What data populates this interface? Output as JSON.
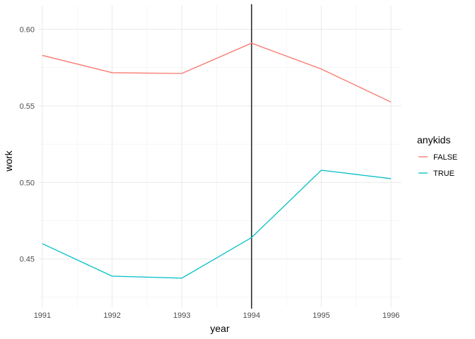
{
  "chart_data": {
    "type": "line",
    "xlabel": "year",
    "ylabel": "work",
    "x": [
      1991,
      1992,
      1993,
      1994,
      1995,
      1996
    ],
    "xlim": [
      1990.95,
      1996.15
    ],
    "ylim": [
      0.4185,
      0.6155
    ],
    "x_ticks": [
      1991,
      1992,
      1993,
      1994,
      1995,
      1996
    ],
    "y_ticks": [
      0.45,
      0.5,
      0.55,
      0.6
    ],
    "y_tick_labels": [
      "0.45",
      "0.50",
      "0.55",
      "0.60"
    ],
    "grid": true,
    "vline": {
      "x": 1994,
      "color": "#000000"
    },
    "legend": {
      "title": "anykids",
      "position": "right"
    },
    "series": [
      {
        "name": "FALSE",
        "color": "#F8766D",
        "values": [
          0.583,
          0.5717,
          0.5712,
          0.591,
          0.5741,
          0.5525
        ]
      },
      {
        "name": "TRUE",
        "color": "#00BFC4",
        "values": [
          0.46,
          0.4388,
          0.4375,
          0.464,
          0.508,
          0.5025
        ]
      }
    ]
  }
}
